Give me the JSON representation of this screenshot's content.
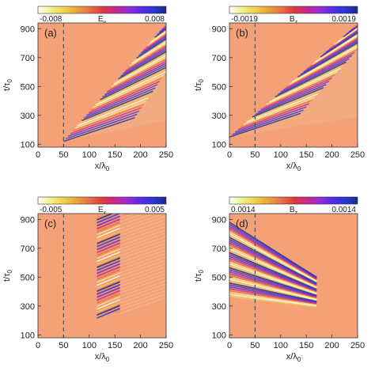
{
  "chart_data": [
    {
      "type": "heatmap",
      "panel_label": "(a)",
      "colorbar": {
        "min_label": "-0.008",
        "field_label": "E",
        "field_sub": "y",
        "max_label": "0.008"
      },
      "xlabel": {
        "base": "x/λ",
        "sub": "0"
      },
      "ylabel": {
        "base": "t/τ",
        "sub": "0"
      },
      "xlim": [
        0,
        250
      ],
      "ylim": [
        80,
        940
      ],
      "xticks": [
        "0",
        "50",
        "100",
        "150",
        "200",
        "250"
      ],
      "yticks": [
        "100",
        "300",
        "500",
        "700",
        "900"
      ],
      "xtick_values": [
        0,
        50,
        100,
        150,
        200,
        250
      ],
      "ytick_values": [
        100,
        300,
        500,
        700,
        900
      ],
      "marker_x": 50,
      "wave_region": {
        "type": "wedge",
        "x_start": 50,
        "t_start": 120,
        "x_end": 250,
        "t_end": 930
      }
    },
    {
      "type": "heatmap",
      "panel_label": "(b)",
      "colorbar": {
        "min_label": "-0.0019",
        "field_label": "B",
        "field_sub": "z",
        "max_label": "0.0019"
      },
      "xlabel": {
        "base": "x/λ",
        "sub": "0"
      },
      "ylabel": {
        "base": "t/τ",
        "sub": "0"
      },
      "xlim": [
        0,
        250
      ],
      "ylim": [
        80,
        940
      ],
      "xticks": [
        "0",
        "50",
        "100",
        "150",
        "200",
        "250"
      ],
      "yticks": [
        "100",
        "300",
        "500",
        "700",
        "900"
      ],
      "xtick_values": [
        0,
        50,
        100,
        150,
        200,
        250
      ],
      "ytick_values": [
        100,
        300,
        500,
        700,
        900
      ],
      "marker_x": 50,
      "wave_region": {
        "type": "wedge",
        "x_start": 0,
        "t_start": 150,
        "x_end": 250,
        "t_end": 930
      }
    },
    {
      "type": "heatmap",
      "panel_label": "(c)",
      "colorbar": {
        "min_label": "-0.005",
        "field_label": "E",
        "field_sub": "x",
        "max_label": "0.005"
      },
      "xlabel": {
        "base": "x/λ",
        "sub": "0"
      },
      "ylabel": {
        "base": "t/τ",
        "sub": "0"
      },
      "xlim": [
        0,
        250
      ],
      "ylim": [
        80,
        940
      ],
      "xticks": [
        "0",
        "50",
        "100",
        "150",
        "200",
        "250"
      ],
      "yticks": [
        "100",
        "300",
        "500",
        "700",
        "900"
      ],
      "xtick_values": [
        0,
        50,
        100,
        150,
        200,
        250
      ],
      "ytick_values": [
        100,
        300,
        500,
        700,
        900
      ],
      "marker_x": 50,
      "wave_region": {
        "type": "band",
        "x_from": 115,
        "x_to": 160,
        "t_from": 250,
        "t_to": 930
      }
    },
    {
      "type": "heatmap",
      "panel_label": "(d)",
      "colorbar": {
        "min_label": "0.0014",
        "field_label": "B",
        "field_sub": "z",
        "max_label": "0.0014"
      },
      "xlabel": {
        "base": "x/λ",
        "sub": "0"
      },
      "ylabel": {
        "base": "t/τ",
        "sub": "0"
      },
      "xlim": [
        0,
        250
      ],
      "ylim": [
        80,
        940
      ],
      "xticks": [
        "0",
        "50",
        "100",
        "150",
        "200",
        "250"
      ],
      "yticks": [
        "100",
        "300",
        "500",
        "700",
        "900"
      ],
      "xtick_values": [
        0,
        50,
        100,
        150,
        200,
        250
      ],
      "ytick_values": [
        100,
        300,
        500,
        700,
        900
      ],
      "marker_x": 50,
      "wave_region": {
        "type": "diagonal",
        "x_from": 0,
        "t_from": 880,
        "x_to": 170,
        "t_to": 500
      }
    }
  ],
  "colorscale": [
    "#ffffff",
    "#f2f08a",
    "#f0d248",
    "#e8a63a",
    "#e8734a",
    "#e03a3a",
    "#c8288a",
    "#9a2ad8",
    "#5a2ae8",
    "#2a36d8",
    "#1a2a8a"
  ],
  "background_color": "#f4a177"
}
